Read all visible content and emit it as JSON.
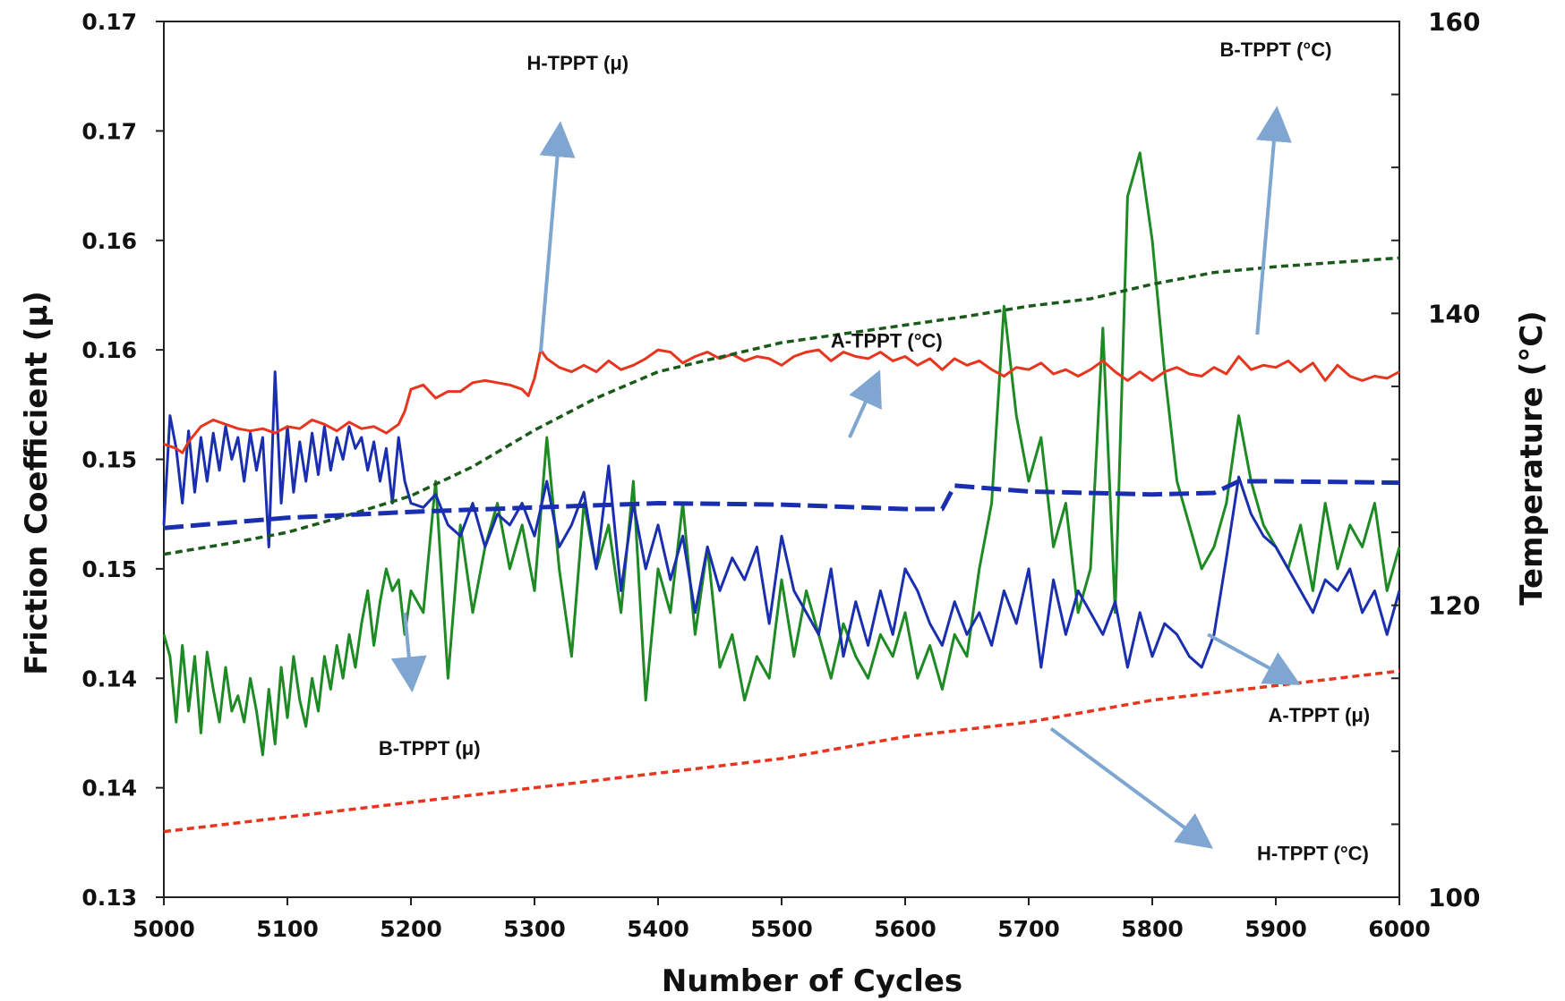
{
  "chart_data": {
    "type": "line",
    "xlabel": "Number of Cycles",
    "ylabel_left": "Friction Coefficient (μ)",
    "ylabel_right": "Temperature (°C)",
    "x_ticks": [
      "5000",
      "5100",
      "5200",
      "5300",
      "5400",
      "5500",
      "5600",
      "5700",
      "5800",
      "5900",
      "6000"
    ],
    "y_left_ticks": [
      "0.13",
      "0.14",
      "0.14",
      "0.15",
      "0.15",
      "0.16",
      "0.16",
      "0.17",
      "0.17"
    ],
    "y_right_ticks": [
      "100",
      "120",
      "140",
      "160"
    ],
    "xlim": [
      5000,
      6000
    ],
    "ylim_left": [
      0.13,
      0.17
    ],
    "ylim_right": [
      100,
      160
    ],
    "grid": false,
    "legend": "none",
    "colors": {
      "H-TPPT (μ)": "#e8351e",
      "A-TPPT (μ)": "#1a2fb0",
      "B-TPPT (μ)": "#1e8a24",
      "H-TPPT (°C)": "#e8351e",
      "A-TPPT (°C)": "#1a2fb0",
      "B-TPPT (°C)": "#1a5a1a",
      "arrow": "#7ea6d0"
    },
    "series": [
      {
        "name": "H-TPPT (μ)",
        "axis": "left",
        "style": "solid",
        "x": [
          5000,
          5010,
          5015,
          5020,
          5030,
          5040,
          5050,
          5060,
          5070,
          5080,
          5090,
          5100,
          5110,
          5120,
          5130,
          5140,
          5150,
          5160,
          5170,
          5180,
          5190,
          5195,
          5200,
          5210,
          5220,
          5230,
          5240,
          5250,
          5260,
          5270,
          5280,
          5290,
          5295,
          5300,
          5305,
          5310,
          5320,
          5330,
          5340,
          5350,
          5360,
          5370,
          5380,
          5390,
          5400,
          5410,
          5420,
          5430,
          5440,
          5450,
          5460,
          5470,
          5480,
          5490,
          5500,
          5510,
          5520,
          5530,
          5540,
          5550,
          5560,
          5570,
          5580,
          5590,
          5600,
          5610,
          5620,
          5630,
          5640,
          5650,
          5660,
          5670,
          5680,
          5690,
          5700,
          5710,
          5720,
          5730,
          5740,
          5750,
          5760,
          5770,
          5780,
          5790,
          5800,
          5810,
          5820,
          5830,
          5840,
          5850,
          5860,
          5870,
          5880,
          5890,
          5900,
          5910,
          5920,
          5930,
          5940,
          5950,
          5960,
          5970,
          5980,
          5990,
          6000
        ],
        "values": [
          0.1507,
          0.1505,
          0.1503,
          0.1508,
          0.1515,
          0.1518,
          0.1516,
          0.1514,
          0.1513,
          0.1514,
          0.1512,
          0.1515,
          0.1514,
          0.1518,
          0.1516,
          0.1513,
          0.1517,
          0.1514,
          0.1515,
          0.1512,
          0.1516,
          0.1522,
          0.1532,
          0.1534,
          0.1528,
          0.1531,
          0.1531,
          0.1535,
          0.1536,
          0.1535,
          0.1534,
          0.1532,
          0.1529,
          0.1537,
          0.155,
          0.1546,
          0.1542,
          0.154,
          0.1543,
          0.154,
          0.1545,
          0.1541,
          0.1543,
          0.1546,
          0.155,
          0.1549,
          0.1544,
          0.1547,
          0.1549,
          0.1546,
          0.1548,
          0.1545,
          0.1547,
          0.1546,
          0.1543,
          0.1547,
          0.1549,
          0.155,
          0.1545,
          0.1549,
          0.1547,
          0.1546,
          0.1549,
          0.1545,
          0.1547,
          0.1543,
          0.1546,
          0.1541,
          0.1546,
          0.1543,
          0.1545,
          0.1541,
          0.1538,
          0.1542,
          0.1541,
          0.1544,
          0.1539,
          0.1541,
          0.1538,
          0.1541,
          0.1545,
          0.154,
          0.1536,
          0.154,
          0.1536,
          0.154,
          0.1542,
          0.1539,
          0.1538,
          0.1542,
          0.1539,
          0.1547,
          0.1541,
          0.1543,
          0.1542,
          0.1545,
          0.154,
          0.1544,
          0.1536,
          0.1543,
          0.1538,
          0.1536,
          0.1538,
          0.1537,
          0.154
        ]
      },
      {
        "name": "A-TPPT (μ)",
        "axis": "left",
        "style": "solid",
        "x": [
          5000,
          5005,
          5010,
          5015,
          5020,
          5025,
          5030,
          5035,
          5040,
          5045,
          5050,
          5055,
          5060,
          5065,
          5070,
          5075,
          5080,
          5085,
          5090,
          5095,
          5100,
          5105,
          5110,
          5115,
          5120,
          5125,
          5130,
          5135,
          5140,
          5145,
          5150,
          5155,
          5160,
          5165,
          5170,
          5175,
          5180,
          5185,
          5190,
          5195,
          5200,
          5210,
          5220,
          5230,
          5240,
          5250,
          5260,
          5270,
          5280,
          5290,
          5300,
          5310,
          5320,
          5330,
          5340,
          5350,
          5360,
          5370,
          5380,
          5390,
          5400,
          5410,
          5420,
          5430,
          5440,
          5450,
          5460,
          5470,
          5480,
          5490,
          5500,
          5510,
          5520,
          5530,
          5540,
          5550,
          5560,
          5570,
          5580,
          5590,
          5600,
          5610,
          5620,
          5630,
          5640,
          5650,
          5660,
          5670,
          5680,
          5690,
          5700,
          5710,
          5720,
          5730,
          5740,
          5750,
          5760,
          5770,
          5780,
          5790,
          5800,
          5810,
          5820,
          5830,
          5840,
          5850,
          5860,
          5870,
          5880,
          5890,
          5900,
          5910,
          5920,
          5930,
          5940,
          5950,
          5960,
          5970,
          5980,
          5990,
          6000
        ],
        "values": [
          0.147,
          0.152,
          0.1505,
          0.148,
          0.1513,
          0.1485,
          0.151,
          0.149,
          0.1512,
          0.1495,
          0.1515,
          0.15,
          0.151,
          0.149,
          0.1512,
          0.1495,
          0.151,
          0.146,
          0.154,
          0.148,
          0.1515,
          0.1485,
          0.1508,
          0.149,
          0.1512,
          0.1493,
          0.1515,
          0.1495,
          0.151,
          0.15,
          0.1515,
          0.1505,
          0.151,
          0.1495,
          0.1508,
          0.149,
          0.1505,
          0.148,
          0.151,
          0.149,
          0.148,
          0.1478,
          0.1484,
          0.147,
          0.1465,
          0.148,
          0.146,
          0.1475,
          0.147,
          0.148,
          0.1465,
          0.149,
          0.146,
          0.147,
          0.1485,
          0.145,
          0.1497,
          0.144,
          0.148,
          0.145,
          0.147,
          0.1445,
          0.1465,
          0.143,
          0.146,
          0.144,
          0.1455,
          0.1445,
          0.146,
          0.1425,
          0.1465,
          0.144,
          0.143,
          0.142,
          0.145,
          0.141,
          0.1435,
          0.1415,
          0.144,
          0.142,
          0.145,
          0.144,
          0.1425,
          0.1415,
          0.1435,
          0.142,
          0.143,
          0.1415,
          0.144,
          0.1425,
          0.145,
          0.1405,
          0.1445,
          0.142,
          0.144,
          0.143,
          0.142,
          0.1435,
          0.1405,
          0.143,
          0.141,
          0.1425,
          0.142,
          0.141,
          0.1405,
          0.142,
          0.1455,
          0.1492,
          0.1475,
          0.1465,
          0.146,
          0.145,
          0.144,
          0.143,
          0.1445,
          0.144,
          0.145,
          0.143,
          0.144,
          0.142,
          0.144
        ]
      },
      {
        "name": "B-TPPT (μ)",
        "axis": "left",
        "style": "solid",
        "x": [
          5000,
          5005,
          5010,
          5015,
          5020,
          5025,
          5030,
          5035,
          5040,
          5045,
          5050,
          5055,
          5060,
          5065,
          5070,
          5075,
          5080,
          5085,
          5090,
          5095,
          5100,
          5105,
          5110,
          5115,
          5120,
          5125,
          5130,
          5135,
          5140,
          5145,
          5150,
          5155,
          5160,
          5165,
          5170,
          5175,
          5180,
          5185,
          5190,
          5195,
          5200,
          5210,
          5220,
          5230,
          5240,
          5250,
          5260,
          5270,
          5280,
          5290,
          5300,
          5310,
          5320,
          5330,
          5340,
          5350,
          5360,
          5370,
          5380,
          5390,
          5400,
          5410,
          5420,
          5430,
          5440,
          5450,
          5460,
          5470,
          5480,
          5490,
          5500,
          5510,
          5520,
          5530,
          5540,
          5550,
          5560,
          5570,
          5580,
          5590,
          5600,
          5610,
          5620,
          5630,
          5640,
          5650,
          5660,
          5670,
          5680,
          5690,
          5700,
          5710,
          5720,
          5730,
          5740,
          5750,
          5760,
          5770,
          5780,
          5790,
          5800,
          5810,
          5820,
          5830,
          5840,
          5850,
          5860,
          5870,
          5880,
          5890,
          5900,
          5910,
          5920,
          5930,
          5940,
          5950,
          5960,
          5970,
          5980,
          5990,
          6000
        ],
        "values": [
          0.142,
          0.141,
          0.138,
          0.1415,
          0.1385,
          0.141,
          0.1375,
          0.1412,
          0.1395,
          0.138,
          0.1405,
          0.1385,
          0.1392,
          0.138,
          0.14,
          0.1385,
          0.1365,
          0.1395,
          0.137,
          0.1405,
          0.1382,
          0.141,
          0.139,
          0.1378,
          0.14,
          0.1385,
          0.141,
          0.1395,
          0.1415,
          0.14,
          0.142,
          0.1405,
          0.1425,
          0.144,
          0.1415,
          0.1435,
          0.145,
          0.144,
          0.1445,
          0.142,
          0.144,
          0.143,
          0.149,
          0.14,
          0.147,
          0.143,
          0.146,
          0.148,
          0.145,
          0.147,
          0.144,
          0.151,
          0.145,
          0.141,
          0.148,
          0.145,
          0.147,
          0.143,
          0.149,
          0.139,
          0.145,
          0.143,
          0.148,
          0.142,
          0.146,
          0.1405,
          0.142,
          0.139,
          0.141,
          0.14,
          0.1445,
          0.141,
          0.144,
          0.142,
          0.14,
          0.1425,
          0.141,
          0.14,
          0.142,
          0.141,
          0.143,
          0.14,
          0.1415,
          0.1395,
          0.142,
          0.141,
          0.145,
          0.148,
          0.157,
          0.152,
          0.149,
          0.151,
          0.146,
          0.148,
          0.143,
          0.145,
          0.156,
          0.143,
          0.162,
          0.164,
          0.16,
          0.154,
          0.149,
          0.147,
          0.145,
          0.146,
          0.148,
          0.152,
          0.149,
          0.147,
          0.146,
          0.145,
          0.147,
          0.144,
          0.148,
          0.145,
          0.147,
          0.146,
          0.148,
          0.144,
          0.146
        ]
      },
      {
        "name": "H-TPPT (°C)",
        "axis": "right",
        "style": "dashed",
        "x": [
          5000,
          5100,
          5200,
          5300,
          5400,
          5500,
          5600,
          5700,
          5800,
          5900,
          6000
        ],
        "values": [
          104.5,
          105.5,
          106.5,
          107.5,
          108.5,
          109.5,
          111.0,
          112.0,
          113.5,
          114.5,
          115.5
        ]
      },
      {
        "name": "A-TPPT (°C)",
        "axis": "right",
        "style": "dashed",
        "x": [
          5000,
          5100,
          5200,
          5300,
          5400,
          5500,
          5600,
          5630,
          5640,
          5700,
          5800,
          5850,
          5870,
          5900,
          6000
        ],
        "values": [
          125.3,
          126.0,
          126.4,
          126.7,
          127.0,
          126.9,
          126.6,
          126.6,
          128.2,
          127.8,
          127.6,
          127.7,
          128.5,
          128.5,
          128.4
        ]
      },
      {
        "name": "B-TPPT (°C)",
        "axis": "right",
        "style": "dashed",
        "x": [
          5000,
          5050,
          5100,
          5150,
          5200,
          5250,
          5300,
          5350,
          5400,
          5450,
          5500,
          5550,
          5600,
          5650,
          5700,
          5750,
          5800,
          5850,
          5900,
          5950,
          6000
        ],
        "values": [
          123.5,
          124.2,
          125.0,
          126.2,
          127.5,
          129.5,
          132.0,
          134.2,
          136.0,
          137.0,
          138.0,
          138.6,
          139.2,
          139.8,
          140.5,
          141.0,
          142.0,
          142.8,
          143.2,
          143.5,
          143.8
        ]
      }
    ],
    "annotations": [
      "H-TPPT (μ)",
      "B-TPPT (°C)",
      "A-TPPT (°C)",
      "B-TPPT (μ)",
      "A-TPPT (μ)",
      "H-TPPT (°C)"
    ]
  }
}
